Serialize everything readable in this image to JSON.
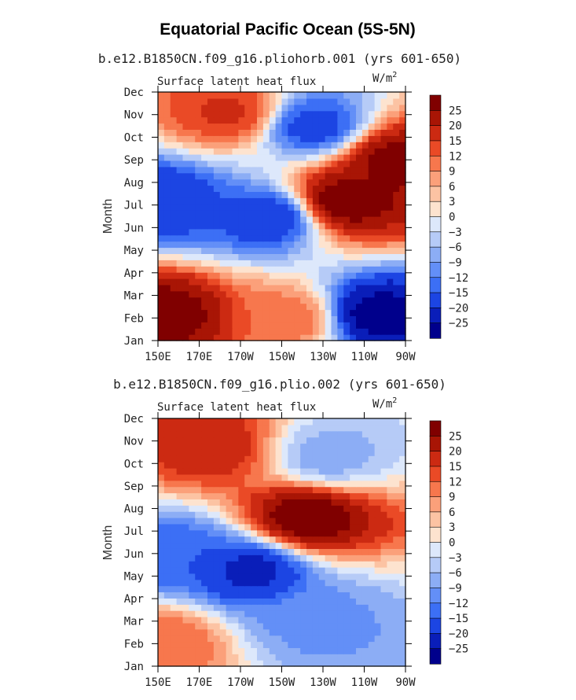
{
  "figure_title": "Equatorial Pacific Ocean (5S-5N)",
  "chart_data": [
    {
      "type": "heatmap",
      "title": "b.e12.B1850CN.f09_g16.pliohorb.001 (yrs 601-650)",
      "left_label": "Surface latent heat flux",
      "units_label": "W/m",
      "units_exp": "2",
      "ylabel": "Month",
      "x_ticks": [
        "150E",
        "170E",
        "170W",
        "150W",
        "130W",
        "110W",
        "90W"
      ],
      "y_ticks": [
        "Jan",
        "Feb",
        "Mar",
        "Apr",
        "May",
        "Jun",
        "Jul",
        "Aug",
        "Sep",
        "Oct",
        "Nov",
        "Dec"
      ],
      "x_range_deg_east": [
        150,
        270
      ],
      "y_range_month_index": [
        0,
        11
      ],
      "z_units": "W/m2",
      "feature_centers": [
        {
          "lon": 153,
          "month": 1.2,
          "value": 28
        },
        {
          "lon": 240,
          "month": 6.2,
          "value": 30
        },
        {
          "lon": 265,
          "month": 8.0,
          "value": 27
        },
        {
          "lon": 185,
          "month": 10.1,
          "value": 16
        },
        {
          "lon": 215,
          "month": 1.0,
          "value": 12
        },
        {
          "lon": 255,
          "month": 1.2,
          "value": -28
        },
        {
          "lon": 205,
          "month": 5.5,
          "value": -20
        },
        {
          "lon": 153,
          "month": 6.2,
          "value": -20
        },
        {
          "lon": 225,
          "month": 9.5,
          "value": -18
        }
      ]
    },
    {
      "type": "heatmap",
      "title": "b.e12.B1850CN.f09_g16.plio.002 (yrs 601-650)",
      "left_label": "Surface latent heat flux",
      "units_label": "W/m",
      "units_exp": "2",
      "ylabel": "Month",
      "x_ticks": [
        "150E",
        "170E",
        "170W",
        "150W",
        "130W",
        "110W",
        "90W"
      ],
      "y_ticks": [
        "Jan",
        "Feb",
        "Mar",
        "Apr",
        "May",
        "Jun",
        "Jul",
        "Aug",
        "Sep",
        "Oct",
        "Nov",
        "Dec"
      ],
      "x_range_deg_east": [
        150,
        270
      ],
      "y_range_month_index": [
        0,
        11
      ],
      "z_units": "W/m2",
      "feature_centers": [
        {
          "lon": 222,
          "month": 6.6,
          "value": 30
        },
        {
          "lon": 176,
          "month": 9.8,
          "value": 18
        },
        {
          "lon": 154,
          "month": 1.1,
          "value": 12
        },
        {
          "lon": 195,
          "month": 4.3,
          "value": -22
        },
        {
          "lon": 225,
          "month": 2.0,
          "value": -10
        },
        {
          "lon": 232,
          "month": 9.3,
          "value": -8
        },
        {
          "lon": 160,
          "month": 5.0,
          "value": -15
        }
      ]
    }
  ],
  "colorbar": {
    "labels": [
      "25",
      "20",
      "15",
      "12",
      "9",
      "6",
      "3",
      "0",
      "−3",
      "−6",
      "−9",
      "−12",
      "−15",
      "−20",
      "−25"
    ],
    "levels": [
      -25,
      -20,
      -15,
      -12,
      -9,
      -6,
      -3,
      0,
      3,
      6,
      9,
      12,
      15,
      20,
      25
    ],
    "colors": [
      "#00008c",
      "#0a1eb9",
      "#1c45e3",
      "#3c6ff5",
      "#638ff7",
      "#8cadf5",
      "#b6cbf7",
      "#dde8fb",
      "#fde3cf",
      "#fcc3a3",
      "#fba07a",
      "#f7774d",
      "#ea4a26",
      "#cc2a12",
      "#a81505",
      "#800000"
    ]
  }
}
